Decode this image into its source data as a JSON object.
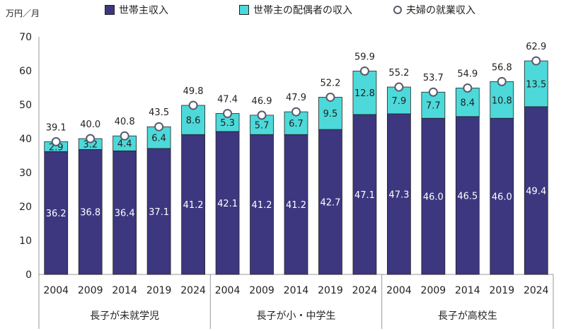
{
  "chart_data": {
    "type": "bar",
    "stacked": true,
    "unit_label": "万円／月",
    "ylim": [
      0,
      70
    ],
    "yticks": [
      0,
      10,
      20,
      30,
      40,
      50,
      60,
      70
    ],
    "grid": false,
    "legend_position": "top",
    "groups": [
      {
        "name": "長子が未就学児",
        "categories": [
          "2004",
          "2009",
          "2014",
          "2019",
          "2024"
        ]
      },
      {
        "name": "長子が小・中学生",
        "categories": [
          "2004",
          "2009",
          "2014",
          "2019",
          "2024"
        ]
      },
      {
        "name": "長子が高校生",
        "categories": [
          "2004",
          "2009",
          "2014",
          "2019",
          "2024"
        ]
      }
    ],
    "series": [
      {
        "name": "世帯主収入",
        "color": "#3d3780",
        "values": [
          36.2,
          36.8,
          36.4,
          37.1,
          41.2,
          42.1,
          41.2,
          41.2,
          42.7,
          47.1,
          47.3,
          46.0,
          46.5,
          46.0,
          49.4
        ],
        "labels": [
          "36.2",
          "36.8",
          "36.4",
          "37.1",
          "41.2",
          "42.1",
          "41.2",
          "41.2",
          "42.7",
          "47.1",
          "47.3",
          "46.0",
          "46.5",
          "46.0",
          "49.4"
        ]
      },
      {
        "name": "世帯主の配偶者の収入",
        "color": "#4dd9d9",
        "values": [
          2.9,
          3.2,
          4.4,
          6.4,
          8.6,
          5.3,
          5.7,
          6.7,
          9.5,
          12.8,
          7.9,
          7.7,
          8.4,
          10.8,
          13.5
        ],
        "labels": [
          "2.9",
          "3.2",
          "4.4",
          "6.4",
          "8.6",
          "5.3",
          "5.7",
          "6.7",
          "9.5",
          "12.8",
          "7.9",
          "7.7",
          "8.4",
          "10.8",
          "13.5"
        ]
      }
    ],
    "totals": {
      "name": "夫婦の就業収入",
      "values": [
        39.1,
        40.0,
        40.8,
        43.5,
        49.8,
        47.4,
        46.9,
        47.9,
        52.2,
        59.9,
        55.2,
        53.7,
        54.9,
        56.8,
        62.9
      ],
      "labels": [
        "39.1",
        "40.0",
        "40.8",
        "43.5",
        "49.8",
        "47.4",
        "46.9",
        "47.9",
        "52.2",
        "59.9",
        "55.2",
        "53.7",
        "54.9",
        "56.8",
        "62.9"
      ]
    }
  }
}
